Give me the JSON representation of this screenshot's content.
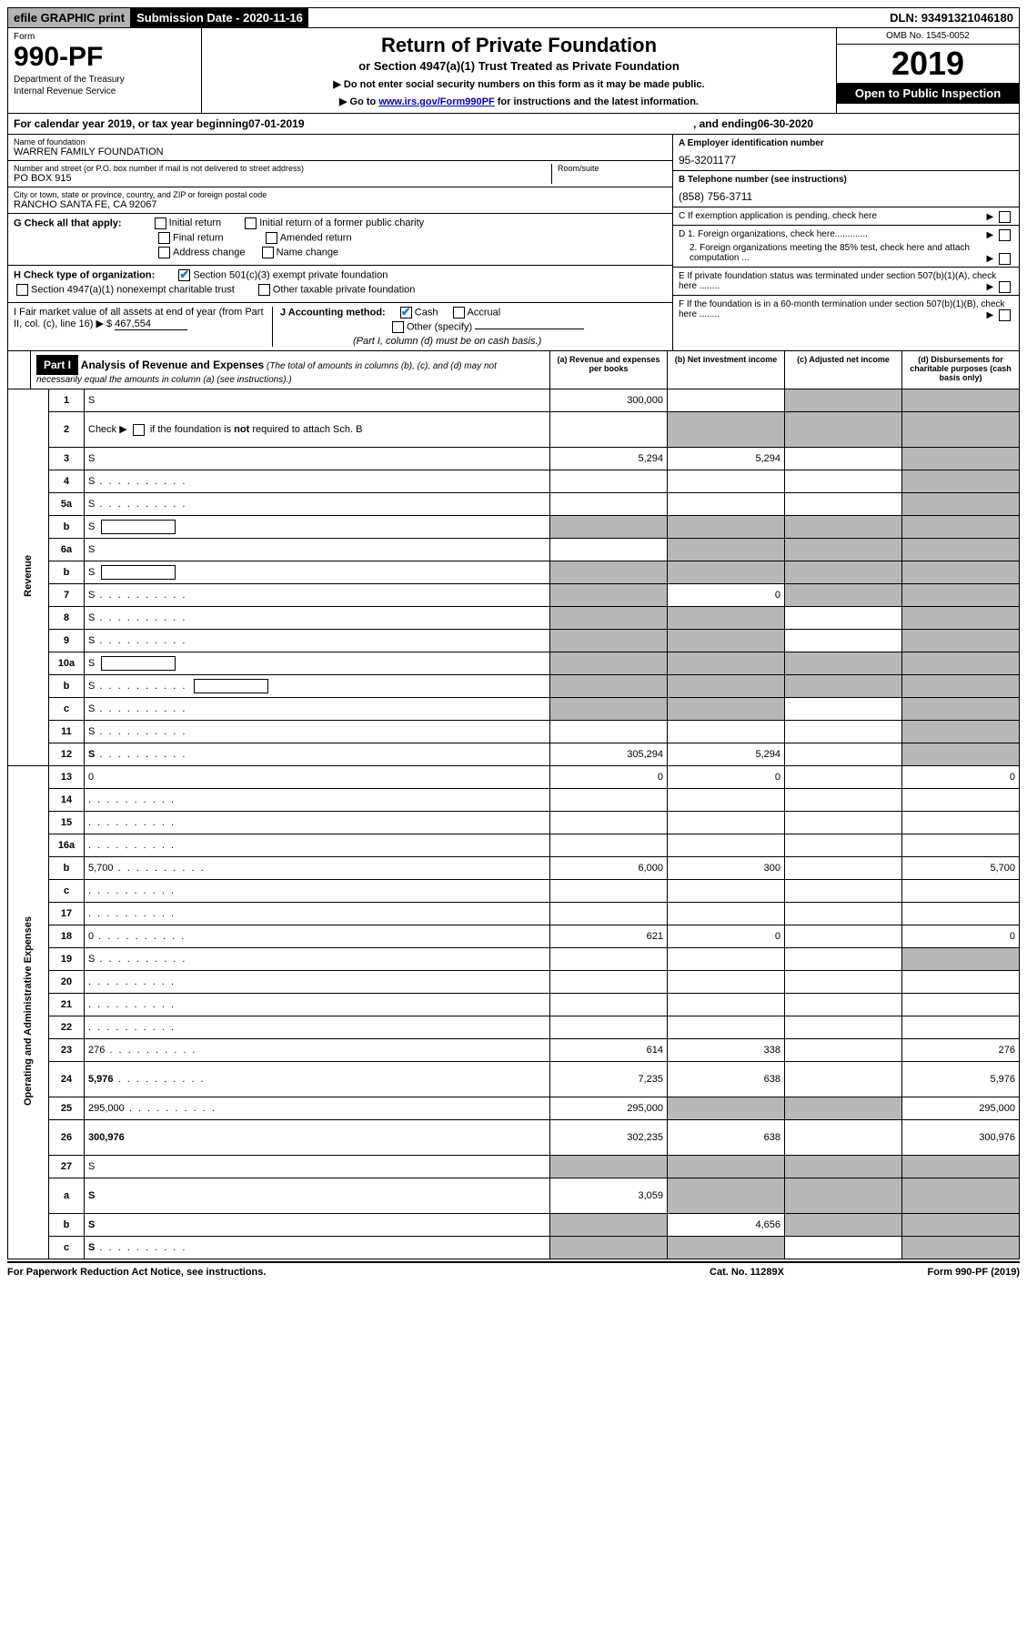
{
  "topbar": {
    "efile": "efile GRAPHIC print",
    "sub_label": "Submission Date - 2020-11-16",
    "dln": "DLN: 93491321046180"
  },
  "header": {
    "form_small": "Form",
    "form_num": "990-PF",
    "dept": "Department of the Treasury",
    "irs": "Internal Revenue Service",
    "title": "Return of Private Foundation",
    "subtitle": "or Section 4947(a)(1) Trust Treated as Private Foundation",
    "instr1": "▶ Do not enter social security numbers on this form as it may be made public.",
    "instr2_pre": "▶ Go to ",
    "instr2_link": "www.irs.gov/Form990PF",
    "instr2_post": " for instructions and the latest information.",
    "omb": "OMB No. 1545-0052",
    "year": "2019",
    "open": "Open to Public Inspection"
  },
  "cal": {
    "pre": "For calendar year 2019, or tax year beginning ",
    "begin": "07-01-2019",
    "mid": ", and ending ",
    "end": "06-30-2020"
  },
  "ident": {
    "name_lbl": "Name of foundation",
    "name": "WARREN FAMILY FOUNDATION",
    "addr_lbl": "Number and street (or P.O. box number if mail is not delivered to street address)",
    "room_lbl": "Room/suite",
    "addr": "PO BOX 915",
    "city_lbl": "City or town, state or province, country, and ZIP or foreign postal code",
    "city": "RANCHO SANTA FE, CA  92067",
    "a_lbl": "A Employer identification number",
    "a_val": "95-3201177",
    "b_lbl": "B Telephone number (see instructions)",
    "b_val": "(858) 756-3711",
    "c_lbl": "C  If exemption application is pending, check here",
    "d1_lbl": "D 1. Foreign organizations, check here.............",
    "d2_lbl": "2. Foreign organizations meeting the 85% test, check here and attach computation ...",
    "e_lbl": "E  If private foundation status was terminated under section 507(b)(1)(A), check here ........",
    "f_lbl": "F  If the foundation is in a 60-month termination under section 507(b)(1)(B), check here ........"
  },
  "g": {
    "lbl": "G Check all that apply:",
    "opts": [
      "Initial return",
      "Initial return of a former public charity",
      "Final return",
      "Amended return",
      "Address change",
      "Name change"
    ]
  },
  "h": {
    "lbl": "H Check type of organization:",
    "o1": "Section 501(c)(3) exempt private foundation",
    "o2": "Section 4947(a)(1) nonexempt charitable trust",
    "o3": "Other taxable private foundation"
  },
  "i": {
    "lbl": "I Fair market value of all assets at end of year (from Part II, col. (c), line 16) ▶ $",
    "val": "467,554"
  },
  "j": {
    "lbl": "J Accounting method:",
    "cash": "Cash",
    "accrual": "Accrual",
    "other": "Other (specify)",
    "note": "(Part I, column (d) must be on cash basis.)"
  },
  "part1": {
    "label": "Part I",
    "title": "Analysis of Revenue and Expenses",
    "title_note": "(The total of amounts in columns (b), (c), and (d) may not necessarily equal the amounts in column (a) (see instructions).)",
    "col_a": "(a)   Revenue and expenses per books",
    "col_b": "(b)  Net investment income",
    "col_c": "(c)  Adjusted net income",
    "col_d": "(d)  Disbursements for charitable purposes (cash basis only)"
  },
  "sections": {
    "revenue": "Revenue",
    "opexp": "Operating and Administrative Expenses"
  },
  "lines": [
    {
      "n": "1",
      "d": "S",
      "a": "300,000",
      "b": "",
      "c": "S"
    },
    {
      "n": "2",
      "d": "S",
      "a": "",
      "b": "S",
      "c": "S",
      "tall": true,
      "check": true
    },
    {
      "n": "3",
      "d": "S",
      "a": "5,294",
      "b": "5,294",
      "c": ""
    },
    {
      "n": "4",
      "d": "S",
      "a": "",
      "b": "",
      "c": "",
      "dots": true
    },
    {
      "n": "5a",
      "d": "S",
      "a": "",
      "b": "",
      "c": "",
      "dots": true
    },
    {
      "n": "b",
      "d": "S",
      "a": "S",
      "b": "S",
      "c": "S",
      "inline": true
    },
    {
      "n": "6a",
      "d": "S",
      "a": "",
      "b": "S",
      "c": "S"
    },
    {
      "n": "b",
      "d": "S",
      "a": "S",
      "b": "S",
      "c": "S",
      "inline": true
    },
    {
      "n": "7",
      "d": "S",
      "a": "S",
      "b": "0",
      "c": "S",
      "dots": true
    },
    {
      "n": "8",
      "d": "S",
      "a": "S",
      "b": "S",
      "c": "",
      "dots": true
    },
    {
      "n": "9",
      "d": "S",
      "a": "S",
      "b": "S",
      "c": "",
      "dots": true
    },
    {
      "n": "10a",
      "d": "S",
      "a": "S",
      "b": "S",
      "c": "S",
      "inline": true
    },
    {
      "n": "b",
      "d": "S",
      "a": "S",
      "b": "S",
      "c": "S",
      "inline": true,
      "dots": true
    },
    {
      "n": "c",
      "d": "S",
      "a": "S",
      "b": "S",
      "c": "",
      "dots": true
    },
    {
      "n": "11",
      "d": "S",
      "a": "",
      "b": "",
      "c": "",
      "dots": true
    },
    {
      "n": "12",
      "d": "S",
      "a": "305,294",
      "b": "5,294",
      "c": "",
      "bold": true,
      "dots": true
    }
  ],
  "exp_lines": [
    {
      "n": "13",
      "d": "0",
      "a": "0",
      "b": "0",
      "c": ""
    },
    {
      "n": "14",
      "d": "",
      "a": "",
      "b": "",
      "c": "",
      "dots": true
    },
    {
      "n": "15",
      "d": "",
      "a": "",
      "b": "",
      "c": "",
      "dots": true
    },
    {
      "n": "16a",
      "d": "",
      "a": "",
      "b": "",
      "c": "",
      "dots": true
    },
    {
      "n": "b",
      "d": "5,700",
      "a": "6,000",
      "b": "300",
      "c": "",
      "dots": true
    },
    {
      "n": "c",
      "d": "",
      "a": "",
      "b": "",
      "c": "",
      "dots": true
    },
    {
      "n": "17",
      "d": "",
      "a": "",
      "b": "",
      "c": "",
      "dots": true
    },
    {
      "n": "18",
      "d": "0",
      "a": "621",
      "b": "0",
      "c": "",
      "dots": true
    },
    {
      "n": "19",
      "d": "S",
      "a": "",
      "b": "",
      "c": "",
      "dots": true
    },
    {
      "n": "20",
      "d": "",
      "a": "",
      "b": "",
      "c": "",
      "dots": true
    },
    {
      "n": "21",
      "d": "",
      "a": "",
      "b": "",
      "c": "",
      "dots": true
    },
    {
      "n": "22",
      "d": "",
      "a": "",
      "b": "",
      "c": "",
      "dots": true
    },
    {
      "n": "23",
      "d": "276",
      "a": "614",
      "b": "338",
      "c": "",
      "dots": true
    },
    {
      "n": "24",
      "d": "5,976",
      "a": "7,235",
      "b": "638",
      "c": "",
      "bold": true,
      "tall": true,
      "dots": true
    },
    {
      "n": "25",
      "d": "295,000",
      "a": "295,000",
      "b": "S",
      "c": "S",
      "dots": true
    },
    {
      "n": "26",
      "d": "300,976",
      "a": "302,235",
      "b": "638",
      "c": "",
      "bold": true,
      "tall": true
    }
  ],
  "sub_lines": [
    {
      "n": "27",
      "d": "S",
      "a": "S",
      "b": "S",
      "c": "S"
    },
    {
      "n": "a",
      "d": "S",
      "a": "3,059",
      "b": "S",
      "c": "S",
      "bold": true,
      "tall": true
    },
    {
      "n": "b",
      "d": "S",
      "a": "S",
      "b": "4,656",
      "c": "S",
      "bold": true
    },
    {
      "n": "c",
      "d": "S",
      "a": "S",
      "b": "S",
      "c": "",
      "bold": true,
      "dots": true
    }
  ],
  "footer": {
    "left": "For Paperwork Reduction Act Notice, see instructions.",
    "mid": "Cat. No. 11289X",
    "right": "Form 990-PF (2019)"
  }
}
